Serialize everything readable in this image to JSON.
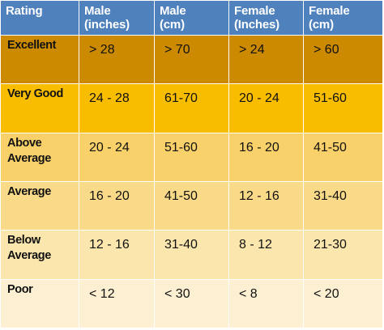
{
  "table": {
    "headers": [
      "Rating",
      "Male\n(inches)",
      "Male\n(cm)",
      "Female\n(Inches)",
      "Female\n(cm)"
    ],
    "rows": [
      {
        "rating": "Excellent",
        "cells": [
          "> 28",
          "> 70",
          "> 24",
          "> 60"
        ],
        "color": "#cc8a00"
      },
      {
        "rating": "Very Good",
        "cells": [
          "24 - 28",
          "61-70",
          "20 - 24",
          "51-60"
        ],
        "color": "#f9bd00"
      },
      {
        "rating": "Above Average",
        "cells": [
          "20 - 24",
          "51-60",
          "16 - 20",
          "41-50"
        ],
        "color": "#f9d16a"
      },
      {
        "rating": "Average",
        "cells": [
          "16 - 20",
          "41-50",
          "12 - 16",
          "31-40"
        ],
        "color": "#f9da88"
      },
      {
        "rating": "Below Average",
        "cells": [
          "12 - 16",
          "31-40",
          "8 - 12",
          "21-30"
        ],
        "color": "#fbe6ad"
      },
      {
        "rating": "Poor",
        "cells": [
          "< 12",
          "< 30",
          "< 8",
          "< 20"
        ],
        "color": "#fdf0d2"
      }
    ]
  }
}
